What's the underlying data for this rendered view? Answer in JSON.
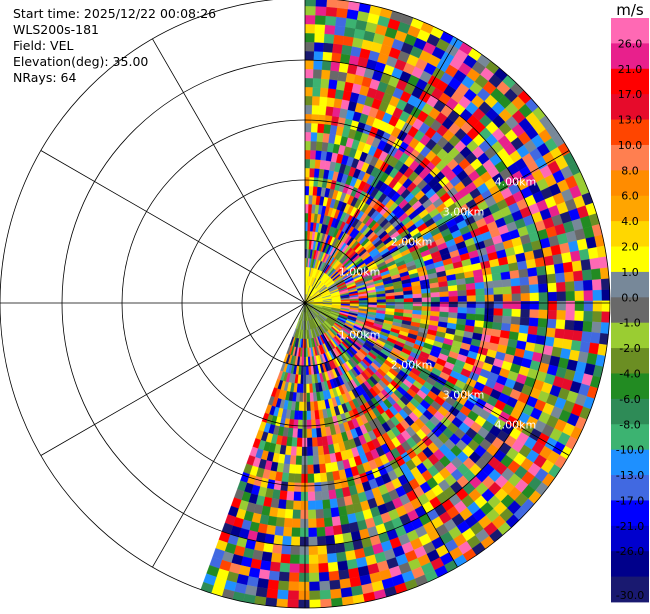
{
  "info": {
    "start_time": "Start time: 2025/12/22 00:08:26",
    "station": "WLS200s-181",
    "field": "Field: VEL",
    "elevation": "Elevation(deg): 35.00",
    "nrays": "NRays: 64"
  },
  "chart_data": {
    "type": "heatmap",
    "title": "",
    "projection": "polar-ppi",
    "field": "VEL",
    "units": "m/s",
    "n_rays": 64,
    "elevation_deg": 35.0,
    "sector_azimuth_deg": [
      0,
      200
    ],
    "range_labels": [
      "1.00km",
      "2.00km",
      "3.00km",
      "4.00km"
    ],
    "range_label_azimuths_deg": [
      60,
      120
    ],
    "colorbar": {
      "units": "m/s",
      "ticks": [
        "26.0",
        "21.0",
        "17.0",
        "13.0",
        "10.0",
        "8.0",
        "6.0",
        "4.0",
        "2.0",
        "1.0",
        "0.0",
        "-1.0",
        "-2.0",
        "-4.0",
        "-6.0",
        "-8.0",
        "-10.0",
        "-13.0",
        "-17.0",
        "-21.0",
        "-26.0",
        "-30.0"
      ],
      "colors_top_to_bottom": [
        "#ff69b4",
        "#e8208c",
        "#ff0000",
        "#e60b2b",
        "#ff4500",
        "#ff7f50",
        "#ff8c00",
        "#ffa500",
        "#ffd700",
        "#ffff00",
        "#778899",
        "#696969",
        "#9acd32",
        "#6b8e23",
        "#228b22",
        "#2e8b57",
        "#3cb371",
        "#1e90ff",
        "#4169e1",
        "#0000ff",
        "#0000cd",
        "#00008b",
        "#191970"
      ]
    },
    "grid": true
  }
}
